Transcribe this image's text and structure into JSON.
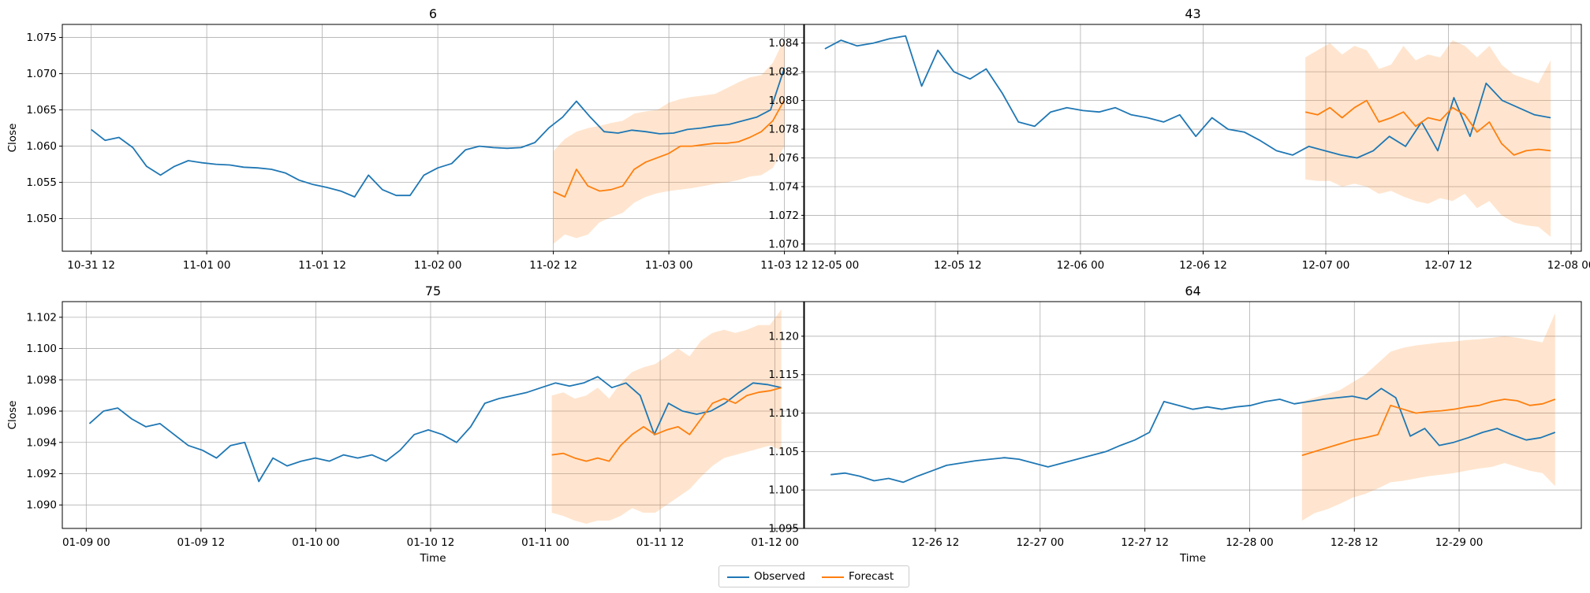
{
  "chart_data": [
    {
      "type": "line",
      "title": "6",
      "ylabel": "Close",
      "xlabel": "",
      "grid": true,
      "ylim": [
        1.0455,
        1.0768
      ],
      "y_ticks": [
        1.05,
        1.055,
        1.06,
        1.065,
        1.07,
        1.075
      ],
      "y_tick_labels": [
        "1.050",
        "1.055",
        "1.060",
        "1.065",
        "1.070",
        "1.075"
      ],
      "xlim": [
        "2023-10-31 09:00",
        "2023-11-03 14:00"
      ],
      "x_ticks": [
        "2023-10-31 12:00",
        "2023-11-01 00:00",
        "2023-11-01 12:00",
        "2023-11-02 00:00",
        "2023-11-02 12:00",
        "2023-11-03 00:00",
        "2023-11-03 12:00"
      ],
      "x_tick_labels": [
        "10-31 12",
        "11-01 00",
        "11-01 12",
        "11-02 00",
        "11-02 12",
        "11-03 00",
        "11-03 12"
      ],
      "series": [
        {
          "name": "Observed",
          "x_start": "2023-10-31 12:00",
          "x_end": "2023-11-03 12:00",
          "values": [
            1.0623,
            1.0608,
            1.0612,
            1.0598,
            1.0572,
            1.056,
            1.0572,
            1.058,
            1.0577,
            1.0575,
            1.0574,
            1.0571,
            1.057,
            1.0568,
            1.0563,
            1.0553,
            1.0547,
            1.0543,
            1.0538,
            1.053,
            1.056,
            1.054,
            1.0532,
            1.0532,
            1.056,
            1.057,
            1.0576,
            1.0595,
            1.06,
            1.0598,
            1.0597,
            1.0598,
            1.0605,
            1.0625,
            1.064,
            1.0662,
            1.064,
            1.062,
            1.0618,
            1.0622,
            1.062,
            1.0617,
            1.0618,
            1.0623,
            1.0625,
            1.0628,
            1.063,
            1.0635,
            1.064,
            1.065,
            1.0708
          ]
        },
        {
          "name": "Forecast",
          "x_start": "2023-11-02 12:00",
          "x_end": "2023-11-03 12:00",
          "values": [
            1.0537,
            1.053,
            1.0568,
            1.0545,
            1.0538,
            1.054,
            1.0545,
            1.0568,
            1.0578,
            1.0584,
            1.059,
            1.06,
            1.06,
            1.0602,
            1.0604,
            1.0604,
            1.0606,
            1.0612,
            1.062,
            1.0635,
            1.0664
          ]
        }
      ],
      "band": {
        "x_start": "2023-11-02 12:00",
        "x_end": "2023-11-03 12:00",
        "lower": [
          1.0465,
          1.0478,
          1.0473,
          1.0478,
          1.0495,
          1.0502,
          1.0508,
          1.0522,
          1.053,
          1.0535,
          1.0538,
          1.054,
          1.0542,
          1.0545,
          1.0548,
          1.055,
          1.0553,
          1.0558,
          1.056,
          1.057,
          1.06
        ],
        "upper": [
          1.0593,
          1.061,
          1.062,
          1.0625,
          1.0628,
          1.0632,
          1.0635,
          1.0645,
          1.0648,
          1.065,
          1.066,
          1.0665,
          1.0668,
          1.067,
          1.0672,
          1.068,
          1.0688,
          1.0695,
          1.0698,
          1.0715,
          1.0748
        ]
      }
    },
    {
      "type": "line",
      "title": "43",
      "ylabel": "",
      "xlabel": "",
      "grid": true,
      "ylim": [
        1.0695,
        1.0853
      ],
      "y_ticks": [
        1.07,
        1.072,
        1.074,
        1.076,
        1.078,
        1.08,
        1.082,
        1.084
      ],
      "y_tick_labels": [
        "1.070",
        "1.072",
        "1.074",
        "1.076",
        "1.078",
        "1.080",
        "1.082",
        "1.084"
      ],
      "xlim": [
        "2023-12-04 21:00",
        "2023-12-08 01:00"
      ],
      "x_ticks": [
        "2023-12-05 00:00",
        "2023-12-05 12:00",
        "2023-12-06 00:00",
        "2023-12-06 12:00",
        "2023-12-07 00:00",
        "2023-12-07 12:00",
        "2023-12-08 00:00"
      ],
      "x_tick_labels": [
        "12-05 00",
        "12-05 12",
        "12-06 00",
        "12-06 12",
        "12-07 00",
        "12-07 12",
        "12-08 00"
      ],
      "series": [
        {
          "name": "Observed",
          "x_start": "2023-12-04 23:00",
          "x_end": "2023-12-07 22:00",
          "values": [
            1.0836,
            1.0842,
            1.0838,
            1.084,
            1.0843,
            1.0845,
            1.081,
            1.0835,
            1.082,
            1.0815,
            1.0822,
            1.0805,
            1.0785,
            1.0782,
            1.0792,
            1.0795,
            1.0793,
            1.0792,
            1.0795,
            1.079,
            1.0788,
            1.0785,
            1.079,
            1.0775,
            1.0788,
            1.078,
            1.0778,
            1.0772,
            1.0765,
            1.0762,
            1.0768,
            1.0765,
            1.0762,
            1.076,
            1.0765,
            1.0775,
            1.0768,
            1.0785,
            1.0765,
            1.0802,
            1.0775,
            1.0812,
            1.08,
            1.0795,
            1.079,
            1.0788
          ]
        },
        {
          "name": "Forecast",
          "x_start": "2023-12-06 22:00",
          "x_end": "2023-12-07 22:00",
          "values": [
            1.0792,
            1.079,
            1.0795,
            1.0788,
            1.0795,
            1.08,
            1.0785,
            1.0788,
            1.0792,
            1.0782,
            1.0788,
            1.0786,
            1.0795,
            1.079,
            1.0778,
            1.0785,
            1.077,
            1.0762,
            1.0765,
            1.0766,
            1.0765
          ]
        }
      ],
      "band": {
        "x_start": "2023-12-06 22:00",
        "x_end": "2023-12-07 22:00",
        "lower": [
          1.0745,
          1.0744,
          1.0744,
          1.074,
          1.0742,
          1.074,
          1.0735,
          1.0737,
          1.0733,
          1.073,
          1.0728,
          1.0732,
          1.073,
          1.0735,
          1.0725,
          1.073,
          1.072,
          1.0715,
          1.0713,
          1.0712,
          1.0705
        ],
        "upper": [
          1.083,
          1.0835,
          1.084,
          1.0832,
          1.0838,
          1.0835,
          1.0822,
          1.0825,
          1.0838,
          1.0828,
          1.0832,
          1.083,
          1.0842,
          1.0838,
          1.083,
          1.0838,
          1.0825,
          1.0818,
          1.0815,
          1.0812,
          1.0828
        ]
      }
    },
    {
      "type": "line",
      "title": "75",
      "ylabel": "Close",
      "xlabel": "Time",
      "grid": true,
      "ylim": [
        1.0885,
        1.103
      ],
      "y_ticks": [
        1.09,
        1.092,
        1.094,
        1.096,
        1.098,
        1.1,
        1.102
      ],
      "y_tick_labels": [
        "1.090",
        "1.092",
        "1.094",
        "1.096",
        "1.098",
        "1.100",
        "1.102"
      ],
      "xlim": [
        "2024-01-08 21:30",
        "2024-01-12 03:00"
      ],
      "x_ticks": [
        "2024-01-09 00:00",
        "2024-01-09 12:00",
        "2024-01-10 00:00",
        "2024-01-10 12:00",
        "2024-01-11 00:00",
        "2024-01-11 12:00",
        "2024-01-12 00:00"
      ],
      "x_tick_labels": [
        "01-09 00",
        "01-09 12",
        "01-10 00",
        "01-10 12",
        "01-11 00",
        "01-11 12",
        "01-12 00"
      ],
      "series": [
        {
          "name": "Observed",
          "x_start": "2024-01-09 00:20",
          "x_end": "2024-01-12 00:40",
          "values": [
            1.0952,
            1.096,
            1.0962,
            1.0955,
            1.095,
            1.0952,
            1.0945,
            1.0938,
            1.0935,
            1.093,
            1.0938,
            1.094,
            1.0915,
            1.093,
            1.0925,
            1.0928,
            1.093,
            1.0928,
            1.0932,
            1.093,
            1.0932,
            1.0928,
            1.0935,
            1.0945,
            1.0948,
            1.0945,
            1.094,
            1.095,
            1.0965,
            1.0968,
            1.097,
            1.0972,
            1.0975,
            1.0978,
            1.0976,
            1.0978,
            1.0982,
            1.0975,
            1.0978,
            1.097,
            1.0945,
            1.0965,
            1.096,
            1.0958,
            1.096,
            1.0965,
            1.0972,
            1.0978,
            1.0977,
            1.0975
          ]
        },
        {
          "name": "Forecast",
          "x_start": "2024-01-11 00:40",
          "x_end": "2024-01-12 00:40",
          "values": [
            1.0932,
            1.0933,
            1.093,
            1.0928,
            1.093,
            1.0928,
            1.0938,
            1.0945,
            1.095,
            1.0945,
            1.0948,
            1.095,
            1.0945,
            1.0955,
            1.0965,
            1.0968,
            1.0965,
            1.097,
            1.0972,
            1.0973,
            1.0975
          ]
        }
      ],
      "band": {
        "x_start": "2024-01-11 00:40",
        "x_end": "2024-01-12 00:40",
        "lower": [
          1.0895,
          1.0893,
          1.089,
          1.0888,
          1.089,
          1.089,
          1.0893,
          1.0898,
          1.0895,
          1.0895,
          1.09,
          1.0905,
          1.091,
          1.0918,
          1.0925,
          1.093,
          1.0932,
          1.0934,
          1.0936,
          1.0938,
          1.0935
        ],
        "upper": [
          1.097,
          1.0972,
          1.0968,
          1.097,
          1.0975,
          1.0968,
          1.0978,
          1.0985,
          1.0988,
          1.099,
          1.0995,
          1.1,
          1.0995,
          1.1005,
          1.101,
          1.1012,
          1.101,
          1.1012,
          1.1015,
          1.1015,
          1.1025
        ]
      }
    },
    {
      "type": "line",
      "title": "64",
      "ylabel": "",
      "xlabel": "Time",
      "grid": true,
      "ylim": [
        1.095,
        1.1245
      ],
      "y_ticks": [
        1.095,
        1.1,
        1.105,
        1.11,
        1.115,
        1.12
      ],
      "y_tick_labels": [
        "1.095",
        "1.100",
        "1.105",
        "1.110",
        "1.115",
        "1.120"
      ],
      "xlim": [
        "2023-12-25 21:00",
        "2023-12-29 14:00"
      ],
      "x_ticks": [
        "2023-12-26 12:00",
        "2023-12-27 00:00",
        "2023-12-27 12:00",
        "2023-12-28 00:00",
        "2023-12-28 12:00",
        "2023-12-29 00:00"
      ],
      "x_tick_labels": [
        "12-26 12",
        "12-27 00",
        "12-27 12",
        "12-28 00",
        "12-28 12",
        "12-29 00"
      ],
      "series": [
        {
          "name": "Observed",
          "x_start": "2023-12-26 00:00",
          "x_end": "2023-12-29 11:00",
          "values": [
            1.102,
            1.1022,
            1.1018,
            1.1012,
            1.1015,
            1.101,
            1.1018,
            1.1025,
            1.1032,
            1.1035,
            1.1038,
            1.104,
            1.1042,
            1.104,
            1.1035,
            1.103,
            1.1035,
            1.104,
            1.1045,
            1.105,
            1.1058,
            1.1065,
            1.1075,
            1.1115,
            1.111,
            1.1105,
            1.1108,
            1.1105,
            1.1108,
            1.111,
            1.1115,
            1.1118,
            1.1112,
            1.1115,
            1.1118,
            1.112,
            1.1122,
            1.1118,
            1.1132,
            1.112,
            1.107,
            1.108,
            1.1058,
            1.1062,
            1.1068,
            1.1075,
            1.108,
            1.1072,
            1.1065,
            1.1068,
            1.1075
          ]
        },
        {
          "name": "Forecast",
          "x_start": "2023-12-28 06:00",
          "x_end": "2023-12-29 11:00",
          "values": [
            1.1045,
            1.105,
            1.1055,
            1.106,
            1.1065,
            1.1068,
            1.1072,
            1.111,
            1.1105,
            1.11,
            1.1102,
            1.1103,
            1.1105,
            1.1108,
            1.111,
            1.1115,
            1.1118,
            1.1116,
            1.111,
            1.1112,
            1.1118
          ]
        }
      ],
      "band": {
        "x_start": "2023-12-28 06:00",
        "x_end": "2023-12-29 11:00",
        "lower": [
          1.096,
          1.097,
          1.0975,
          1.0982,
          1.099,
          1.0995,
          1.1002,
          1.101,
          1.1012,
          1.1015,
          1.1018,
          1.102,
          1.1022,
          1.1025,
          1.1028,
          1.103,
          1.1035,
          1.103,
          1.1025,
          1.1022,
          1.1005
        ],
        "upper": [
          1.1115,
          1.112,
          1.1125,
          1.113,
          1.114,
          1.115,
          1.1165,
          1.118,
          1.1185,
          1.1188,
          1.119,
          1.1192,
          1.1193,
          1.1195,
          1.1196,
          1.1198,
          1.12,
          1.1198,
          1.1195,
          1.1192,
          1.123
        ]
      }
    }
  ],
  "legend": {
    "position": "bottom-center",
    "items": [
      {
        "label": "Observed",
        "color": "#1f77b4"
      },
      {
        "label": "Forecast",
        "color": "#ff7f0e"
      }
    ]
  },
  "colors": {
    "observed": "#1f77b4",
    "forecast": "#ff7f0e",
    "band": "#ff7f0e",
    "grid": "#b0b0b0",
    "axis": "#000000"
  }
}
